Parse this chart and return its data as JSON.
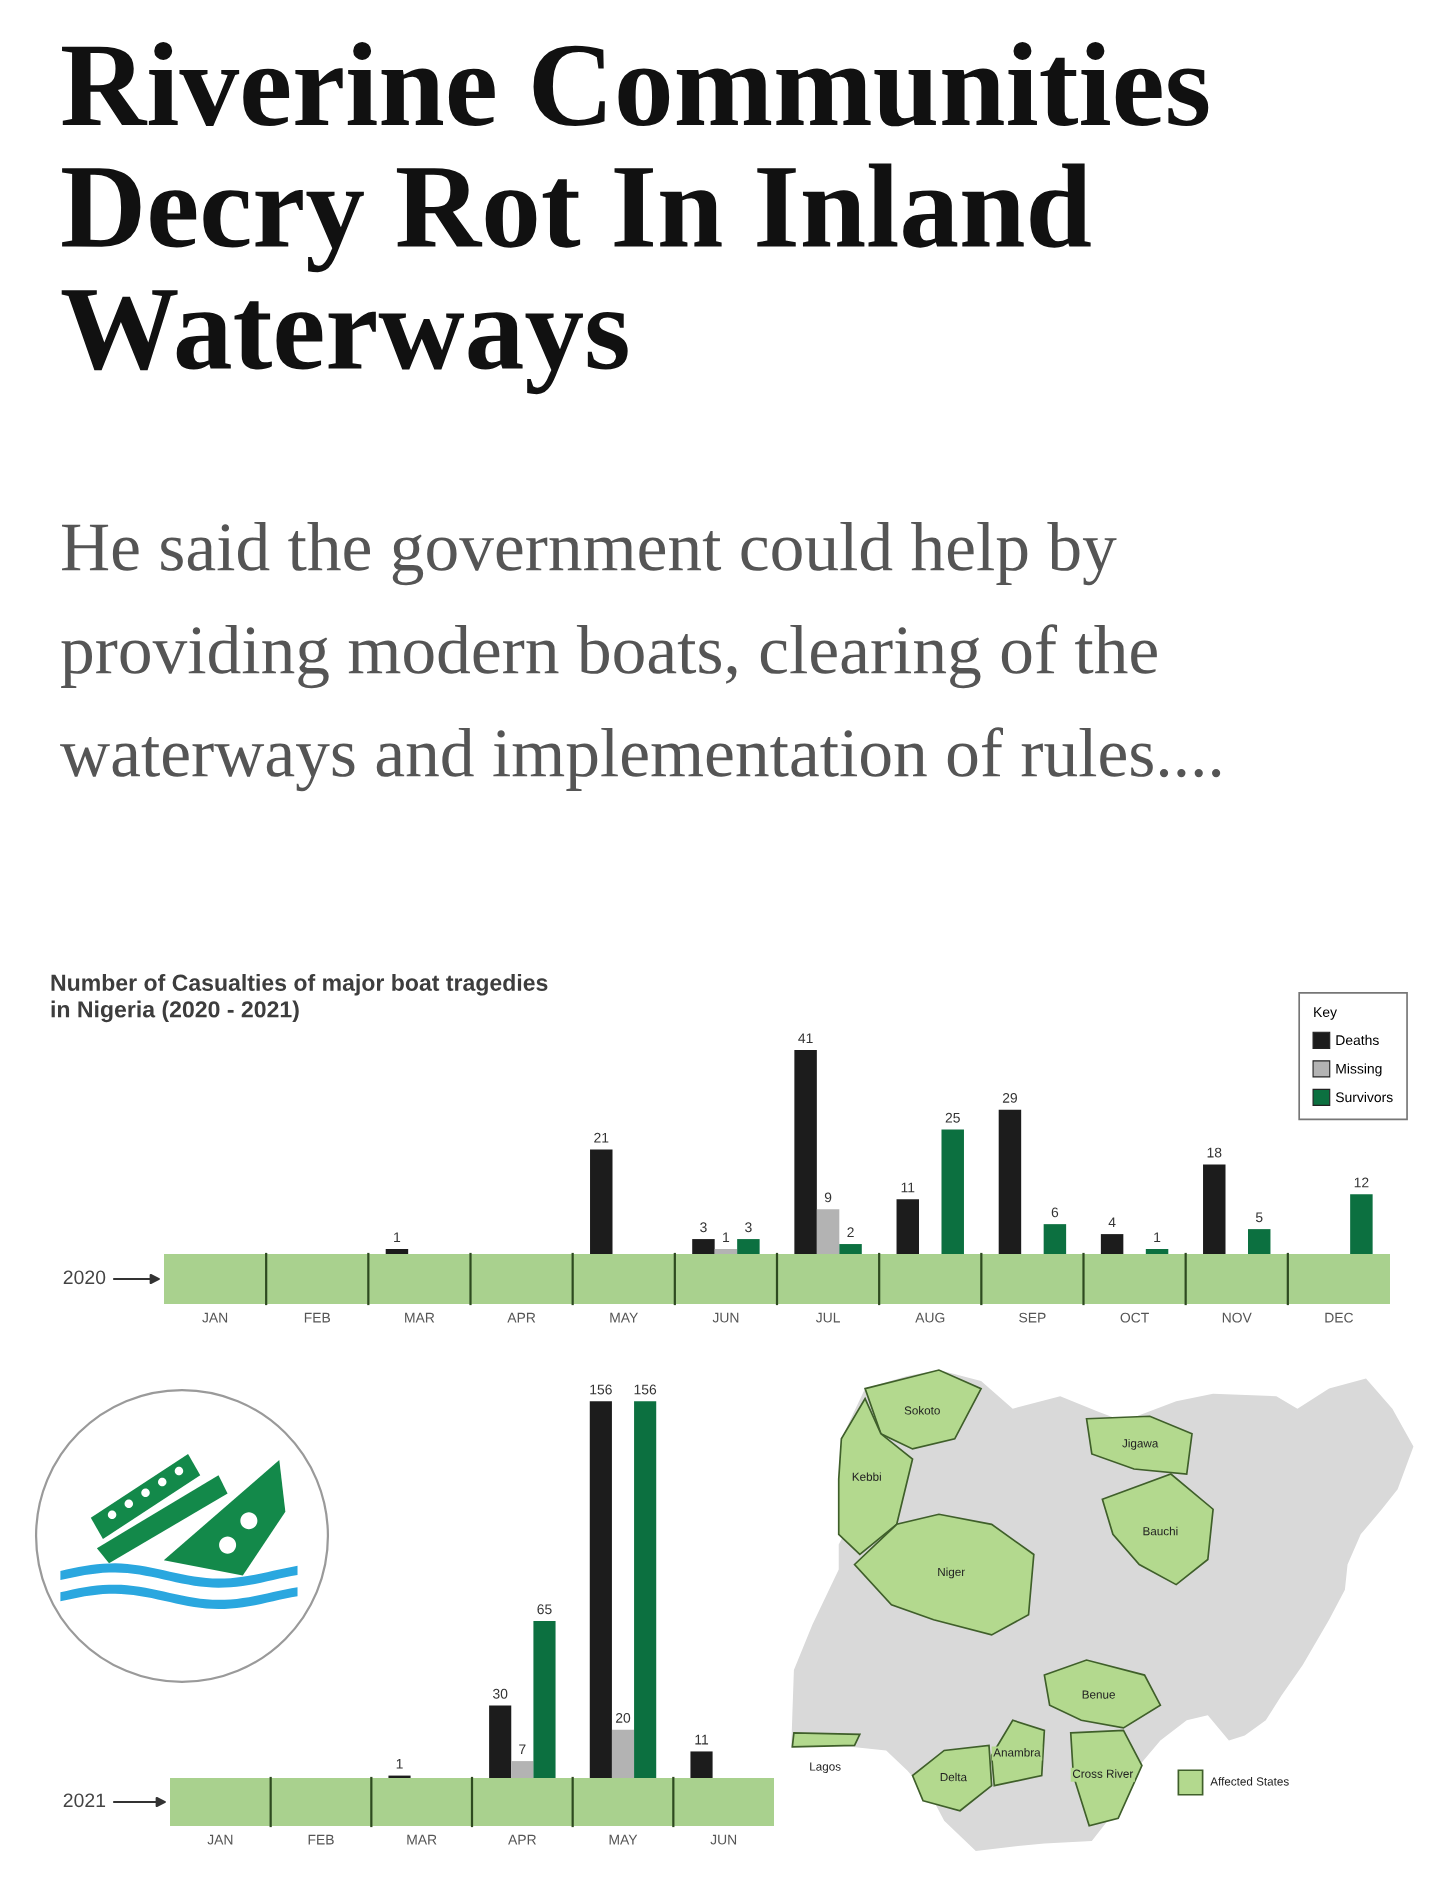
{
  "chart_data": [
    {
      "type": "bar",
      "title": "Riverine Communities Decry Rot In Inland Waterways",
      "subtitle": "He said the government could help by providing modern boats, clearing of the waterways and implementation of rules....",
      "annotations": [
        "Number of Casualties of major boat tragedies\nin Nigeria (2020 - 2021)"
      ],
      "ylabel": "2020",
      "categories": [
        "JAN",
        "FEB",
        "MAR",
        "APR",
        "MAY",
        "JUN",
        "JUL",
        "AUG",
        "SEP",
        "OCT",
        "NOV",
        "DEC"
      ],
      "series": [
        {
          "name": "Deaths",
          "color": "#1c1c1c",
          "values": [
            null,
            null,
            1,
            null,
            21,
            3,
            41,
            11,
            29,
            4,
            18,
            null
          ]
        },
        {
          "name": "Missing",
          "color": "#b3b3b3",
          "values": [
            null,
            null,
            null,
            null,
            null,
            1,
            9,
            null,
            null,
            null,
            null,
            null
          ]
        },
        {
          "name": "Survivors",
          "color": "#0c7040",
          "values": [
            null,
            null,
            null,
            null,
            null,
            3,
            2,
            25,
            6,
            1,
            5,
            12
          ]
        }
      ],
      "data_labels": true,
      "legend": "top right",
      "legend_title": "Key"
    },
    {
      "type": "bar",
      "ylabel": "2021",
      "categories": [
        "JAN",
        "FEB",
        "MAR",
        "APR",
        "MAY",
        "JUN"
      ],
      "series": [
        {
          "color": "#1c1c1c",
          "values": [
            null,
            null,
            1,
            30,
            156,
            11
          ]
        },
        {
          "color": "#b3b3b3",
          "values": [
            null,
            null,
            null,
            7,
            20,
            null
          ]
        },
        {
          "color": "#0c7040",
          "values": [
            null,
            null,
            null,
            65,
            156,
            null
          ]
        }
      ],
      "data_labels": true
    },
    {
      "type": "other",
      "annotations": [
        "Sokoto",
        "Kebbi",
        "Niger",
        "Jigawa",
        "Bauchi",
        "Benue",
        "Lagos",
        "Anambra",
        "Delta",
        "Cross River",
        "Affected States"
      ]
    }
  ]
}
